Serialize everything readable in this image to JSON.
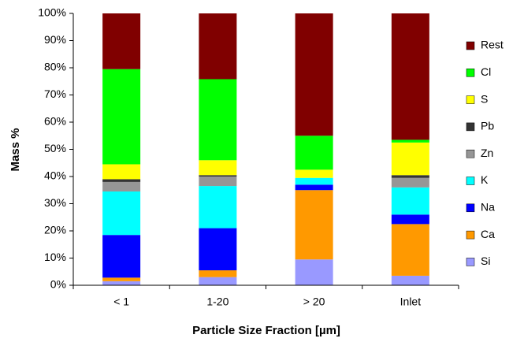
{
  "chart_data": {
    "type": "stacked_bar",
    "x_label": "Particle Size Fraction [µm]",
    "y_label": "Mass %",
    "categories": [
      "< 1",
      "1-20",
      "> 20",
      "Inlet"
    ],
    "series": [
      {
        "name": "Si",
        "color": "#9999ff",
        "values": [
          1.5,
          3,
          9.5,
          3.5
        ]
      },
      {
        "name": "Ca",
        "color": "#ff9900",
        "values": [
          1.3,
          2.5,
          25.5,
          19
        ]
      },
      {
        "name": "Na",
        "color": "#0000ff",
        "values": [
          15.7,
          15.5,
          2,
          3.5
        ]
      },
      {
        "name": "K",
        "color": "#00ffff",
        "values": [
          16,
          15.5,
          2.5,
          10
        ]
      },
      {
        "name": "Zn",
        "color": "#969696",
        "values": [
          3.5,
          3.5,
          0,
          3.5
        ]
      },
      {
        "name": "Pb",
        "color": "#333333",
        "values": [
          1,
          0.5,
          0,
          1
        ]
      },
      {
        "name": "S",
        "color": "#ffff00",
        "values": [
          5.5,
          5.5,
          3,
          12
        ]
      },
      {
        "name": "Cl",
        "color": "#00ff00",
        "values": [
          35,
          29.8,
          12.5,
          1
        ]
      },
      {
        "name": "Rest",
        "color": "#800000",
        "values": [
          20.5,
          24.2,
          45,
          46.5
        ]
      }
    ],
    "ylim": [
      0,
      100
    ],
    "yticks": [
      {
        "value": 0,
        "label": "0%"
      },
      {
        "value": 10,
        "label": "10%"
      },
      {
        "value": 20,
        "label": "20%"
      },
      {
        "value": 30,
        "label": "30%"
      },
      {
        "value": 40,
        "label": "40%"
      },
      {
        "value": 50,
        "label": "50%"
      },
      {
        "value": 60,
        "label": "60%"
      },
      {
        "value": 70,
        "label": "70%"
      },
      {
        "value": 80,
        "label": "80%"
      },
      {
        "value": 90,
        "label": "90%"
      },
      {
        "value": 100,
        "label": "100%"
      }
    ],
    "legend": "right"
  }
}
